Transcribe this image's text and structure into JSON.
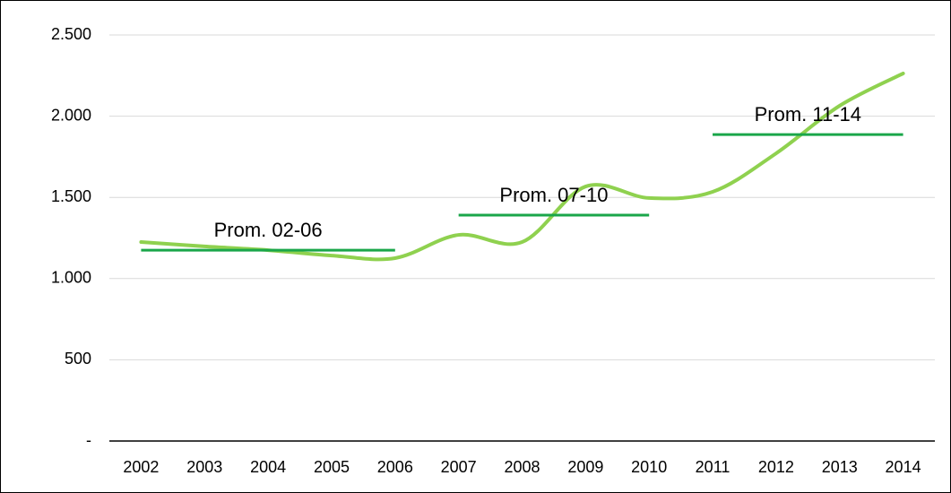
{
  "chart_data": {
    "type": "line",
    "categories": [
      "2002",
      "2003",
      "2004",
      "2005",
      "2006",
      "2007",
      "2008",
      "2009",
      "2010",
      "2011",
      "2012",
      "2013",
      "2014"
    ],
    "series": [
      {
        "color": "#8fd14f",
        "values": [
          1225,
          1198,
          1175,
          1142,
          1126,
          1269,
          1225,
          1567,
          1496,
          1534,
          1771,
          2064,
          2263
        ]
      },
      {
        "name": "Prom. 02-06",
        "color": "#1aa64a",
        "values": [
          1175,
          1175,
          1175,
          1175,
          1175,
          null,
          null,
          null,
          null,
          null,
          null,
          null,
          null
        ]
      },
      {
        "name": "Prom. 07-10",
        "color": "#1aa64a",
        "values": [
          null,
          null,
          null,
          null,
          null,
          1391,
          1391,
          1391,
          1391,
          null,
          null,
          null,
          null
        ]
      },
      {
        "name": "Prom. 11-14",
        "color": "#1aa64a",
        "values": [
          null,
          null,
          null,
          null,
          null,
          null,
          null,
          null,
          null,
          1887,
          1887,
          1887,
          1887
        ]
      }
    ],
    "ylim": [
      0,
      2500
    ],
    "yticks": [
      {
        "value": 0,
        "label": "-"
      },
      500,
      {
        "value": 1000,
        "label": "1.000"
      },
      {
        "value": 1500,
        "label": "1.500"
      },
      {
        "value": 2000,
        "label": "2.000"
      },
      {
        "value": 2500,
        "label": "2.500"
      }
    ],
    "grid": true
  }
}
